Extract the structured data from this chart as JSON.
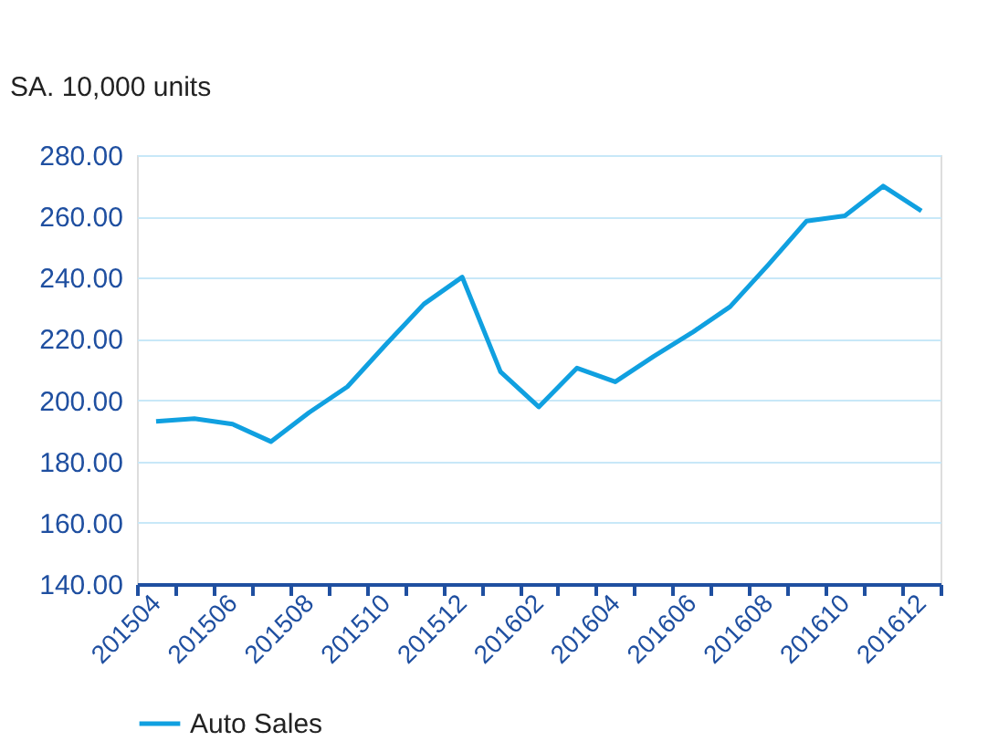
{
  "chart_data": {
    "type": "line",
    "ylabel": "SA. 10,000 units",
    "categories": [
      "201504",
      null,
      "201506",
      null,
      "201508",
      null,
      "201510",
      null,
      "201512",
      null,
      "201602",
      null,
      "201604",
      null,
      "201606",
      null,
      "201608",
      null,
      "201610",
      null,
      "201612"
    ],
    "series": [
      {
        "name": "Auto Sales",
        "color": "#10a0e0",
        "values": [
          193.1,
          194.0,
          192.2,
          186.5,
          196.0,
          204.4,
          218.1,
          231.4,
          240.2,
          209.3,
          197.8,
          210.5,
          206.0,
          214.3,
          222.0,
          230.5,
          244.2,
          258.5,
          260.2,
          269.9,
          261.8
        ]
      }
    ],
    "ylim": [
      140,
      280
    ],
    "yticks": [
      {
        "value": 140,
        "label": "140.00"
      },
      {
        "value": 160,
        "label": "160.00"
      },
      {
        "value": 180,
        "label": "180.00"
      },
      {
        "value": 200,
        "label": "200.00"
      },
      {
        "value": 220,
        "label": "220.00"
      },
      {
        "value": 240,
        "label": "240.00"
      },
      {
        "value": 260,
        "label": "260.00"
      },
      {
        "value": 280,
        "label": "280.00"
      }
    ],
    "grid": "y",
    "legend": "bottom",
    "line_style": "solid",
    "marker": "none"
  }
}
